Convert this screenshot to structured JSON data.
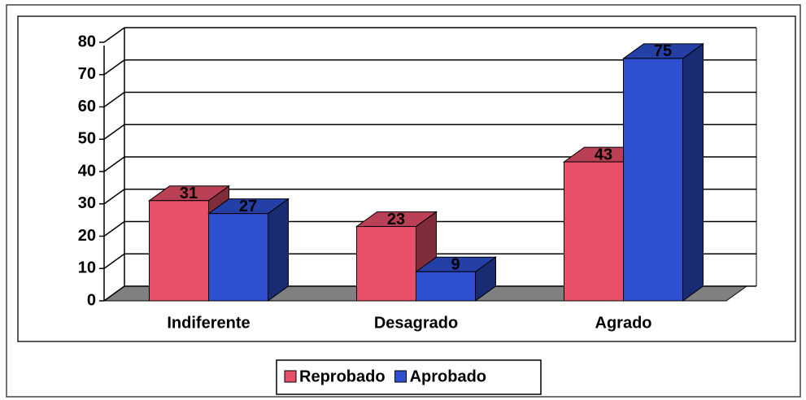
{
  "chart_data": {
    "type": "bar3d",
    "categories": [
      "Indiferente",
      "Desagrado",
      "Agrado"
    ],
    "series": [
      {
        "name": "Reprobado",
        "color": "#e8506a",
        "values": [
          31,
          23,
          43
        ]
      },
      {
        "name": "Aprobado",
        "color": "#2d4fd0",
        "values": [
          27,
          9,
          75
        ]
      }
    ],
    "ylim": [
      0,
      80
    ],
    "yticks": [
      0,
      10,
      20,
      30,
      40,
      50,
      60,
      70,
      80
    ],
    "grid": true,
    "legend": "bottom"
  }
}
